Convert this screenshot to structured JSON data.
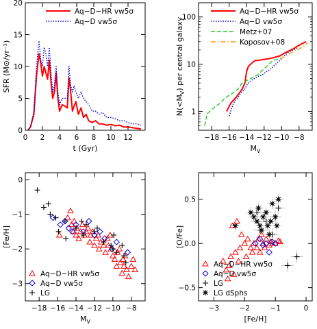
{
  "chart_data": [
    {
      "type": "line",
      "xlabel": "t (Gyr)",
      "ylabel": "SFR (M⊙/yr⁻¹)",
      "xlim": [
        0,
        14
      ],
      "ylim": [
        0,
        20
      ],
      "xticks": [
        "0",
        "2",
        "4",
        "6",
        "8",
        "10",
        "12"
      ],
      "yticks": [
        "0",
        "5",
        "10",
        "15",
        "20"
      ],
      "legend_position": "top-right",
      "series": [
        {
          "name": "Aq−D−HR vw5σ",
          "color": "#ff0000",
          "style": "solid",
          "x": [
            0.3,
            0.6,
            1.0,
            1.3,
            1.6,
            1.8,
            2.0,
            2.2,
            2.4,
            2.6,
            2.8,
            3.0,
            3.2,
            3.4,
            3.6,
            3.8,
            4.0,
            4.3,
            4.6,
            4.9,
            5.1,
            5.3,
            5.5,
            5.7,
            5.9,
            6.2,
            6.5,
            6.8,
            7.1,
            7.4,
            7.8,
            8.2,
            8.6,
            9.0,
            9.5,
            10.0,
            10.5,
            11.0,
            11.5,
            12.0,
            12.5,
            13.0,
            13.5
          ],
          "y": [
            0,
            0.5,
            2.5,
            8.5,
            12,
            10.5,
            8.5,
            10,
            9,
            8,
            11,
            7.5,
            5,
            6,
            9,
            5,
            3,
            4,
            3.8,
            3.5,
            8.2,
            6,
            3,
            3.8,
            4.5,
            2.5,
            3.5,
            2,
            2.5,
            1.5,
            1.2,
            1.5,
            1,
            1,
            0.8,
            0.9,
            0.7,
            0.8,
            0.5,
            0.5,
            0.4,
            0.3,
            0.2
          ]
        },
        {
          "name": "Aq−D vw5σ",
          "color": "#0000dd",
          "style": "dotted",
          "x": [
            0.3,
            0.6,
            1.0,
            1.3,
            1.6,
            1.8,
            2.0,
            2.2,
            2.4,
            2.6,
            2.8,
            3.0,
            3.2,
            3.4,
            3.6,
            3.8,
            4.0,
            4.3,
            4.6,
            4.9,
            5.1,
            5.3,
            5.5,
            5.7,
            5.9,
            6.2,
            6.5,
            6.8,
            7.1,
            7.4,
            7.8,
            8.2,
            8.6,
            9.0,
            9.5,
            10.0,
            10.5,
            11.0,
            11.5,
            12.0,
            12.5,
            13.0,
            13.5
          ],
          "y": [
            0,
            0.5,
            3,
            10,
            14,
            11,
            10,
            13,
            12,
            10,
            13,
            9,
            6,
            7,
            10,
            6,
            4,
            5,
            5,
            5,
            10,
            7,
            6,
            7,
            6,
            5,
            6,
            5,
            4.5,
            4,
            3,
            3,
            2.5,
            2.8,
            2,
            2,
            1.8,
            1.5,
            1.5,
            1.2,
            1,
            1,
            0.8
          ]
        }
      ]
    },
    {
      "type": "line",
      "xlabel": "M_V",
      "ylabel": "N(<M_V) per central galaxy",
      "xlim": [
        -19.5,
        -6.5
      ],
      "ylim": [
        0.4,
        200
      ],
      "yscale": "log",
      "xticks": [
        "−18",
        "−16",
        "−14",
        "−12",
        "−10",
        "−8"
      ],
      "yticks": [
        "1",
        "10",
        "100"
      ],
      "legend_position": "top-right",
      "series": [
        {
          "name": "Aq−D−HR vw5σ",
          "color": "#ff0000",
          "style": "solid",
          "x": [
            -16.3,
            -15.8,
            -15.2,
            -14.8,
            -14.5,
            -14.2,
            -14.0,
            -13.8,
            -13.3,
            -13.0,
            -12.7,
            -12.2,
            -11.5,
            -10.8,
            -10.2,
            -9.7,
            -9.2,
            -8.7,
            -8.2,
            -7.7,
            -7.2
          ],
          "y": [
            1,
            1.5,
            2,
            2.5,
            3,
            4,
            7,
            9,
            11,
            12,
            12,
            12.5,
            13,
            14,
            15,
            17,
            19,
            21,
            24,
            27,
            30
          ]
        },
        {
          "name": "Aq−D vw5σ",
          "color": "#0000dd",
          "style": "dotted",
          "x": [
            -16.0,
            -15.5,
            -15.0,
            -14.6,
            -14.2,
            -13.9,
            -13.5,
            -13.1,
            -12.7,
            -12.2,
            -11.7,
            -11.2,
            -10.7,
            -10.2,
            -9.7,
            -9.2,
            -8.7,
            -8.2
          ],
          "y": [
            0.8,
            1.5,
            2,
            2.5,
            3,
            3.8,
            4.5,
            5,
            5.5,
            6,
            7,
            8,
            10,
            12,
            15,
            18,
            20,
            22
          ]
        },
        {
          "name": "Metz+07",
          "color": "#22cc22",
          "style": "dashed",
          "x": [
            -18.8,
            -18.5,
            -18.0,
            -17.5,
            -17.0,
            -16.5,
            -16.0,
            -15.5,
            -15.0,
            -14.5,
            -14.0,
            -13.5,
            -12.7,
            -12.0,
            -11.0,
            -10.2
          ],
          "y": [
            0.5,
            0.9,
            1.1,
            1.3,
            1.5,
            1.9,
            2.2,
            2.5,
            3,
            4,
            4.5,
            5,
            6,
            8,
            12,
            13
          ]
        },
        {
          "name": "Koposov+08",
          "color": "#ff9900",
          "style": "dashdot",
          "x": [
            -10.2,
            -9.5,
            -9.0,
            -8.5,
            -8.0,
            -7.5,
            -7.0
          ],
          "y": [
            13,
            15,
            17,
            19,
            21,
            24,
            28
          ]
        }
      ]
    },
    {
      "type": "scatter",
      "xlabel": "M_V",
      "ylabel": "[Fe/H]",
      "xlim": [
        -19.5,
        -6.5
      ],
      "ylim": [
        -3.5,
        0.2
      ],
      "xticks": [
        "−18",
        "−16",
        "−14",
        "−12",
        "−10",
        "−8"
      ],
      "yticks": [
        "−3",
        "−2",
        "−1",
        "0"
      ],
      "legend_position": "bottom-left",
      "series": [
        {
          "name": "Aq−D−HR vw5σ",
          "color": "#ff0000",
          "marker": "triangle",
          "x": [
            -15.8,
            -14.9,
            -14.6,
            -14.5,
            -14.3,
            -14.2,
            -14.0,
            -13.9,
            -13.7,
            -13.5,
            -13.3,
            -13.1,
            -12.9,
            -12.7,
            -12.5,
            -12.4,
            -12.2,
            -12.0,
            -11.8,
            -11.6,
            -11.5,
            -11.3,
            -11.0,
            -10.8,
            -10.6,
            -10.5,
            -10.3,
            -10.2,
            -10.0,
            -9.8,
            -9.6,
            -9.5,
            -9.3,
            -9.2,
            -9.0,
            -8.9,
            -8.8,
            -8.7,
            -8.5,
            -8.3,
            -8.0,
            -7.8,
            -7.6
          ],
          "y": [
            -1.6,
            -1.1,
            -0.9,
            -1.3,
            -1.5,
            -1.2,
            -1.6,
            -1.4,
            -1.7,
            -1.5,
            -1.3,
            -1.6,
            -1.5,
            -1.4,
            -1.8,
            -1.6,
            -1.5,
            -1.9,
            -1.7,
            -1.6,
            -2.0,
            -1.8,
            -1.9,
            -2.1,
            -1.7,
            -1.9,
            -1.6,
            -2.0,
            -2.2,
            -2.3,
            -2.5,
            -2.1,
            -2.0,
            -2.4,
            -2.7,
            -2.3,
            -2.5,
            -2.2,
            -2.6,
            -2.8,
            -2.5,
            -2.3,
            -2.6
          ]
        },
        {
          "name": "Aq−D vw5σ",
          "color": "#0000dd",
          "marker": "diamond",
          "x": [
            -16.5,
            -15.7,
            -15.2,
            -14.8,
            -14.4,
            -14.0,
            -13.2,
            -12.6,
            -12.0,
            -11.4,
            -10.9,
            -10.1,
            -9.6,
            -8.4
          ],
          "y": [
            -1.1,
            -1.3,
            -1.2,
            -1.4,
            -1.5,
            -1.3,
            -1.5,
            -1.2,
            -1.6,
            -1.5,
            -1.7,
            -2.0,
            -1.8,
            -2.1
          ]
        },
        {
          "name": "LG",
          "color": "#000000",
          "marker": "plus",
          "x": [
            -18.2,
            -17.5,
            -17.0,
            -16.8,
            -16.2,
            -15.9,
            -15.2,
            -15.1,
            -14.0,
            -13.4,
            -13.2,
            -12.9,
            -12.0,
            -11.7,
            -11.0,
            -10.2,
            -10.0,
            -9.9,
            -9.6,
            -9.0,
            -8.8,
            -8.6
          ],
          "y": [
            -0.3,
            -0.8,
            -0.7,
            -1.0,
            -1.1,
            -1.5,
            -1.2,
            -1.7,
            -1.4,
            -1.2,
            -1.6,
            -1.3,
            -1.5,
            -1.4,
            -1.8,
            -1.9,
            -2.0,
            -1.6,
            -2.1,
            -1.9,
            -2.2,
            -2.4
          ]
        }
      ]
    },
    {
      "type": "scatter",
      "xlabel": "[Fe/H]",
      "ylabel": "[O/Fe]",
      "xlim": [
        -3.5,
        0.2
      ],
      "ylim": [
        -0.65,
        0.8
      ],
      "xticks": [
        "−3",
        "−2",
        "−1",
        "0"
      ],
      "yticks": [
        "−0.5",
        "0.0",
        "0.5"
      ],
      "legend_position": "bottom-left",
      "series": [
        {
          "name": "Aq−D−HR vw5σ",
          "color": "#ff0000",
          "marker": "triangle",
          "x": [
            -2.7,
            -2.6,
            -2.55,
            -2.5,
            -2.45,
            -2.4,
            -2.35,
            -2.3,
            -2.25,
            -2.2,
            -2.15,
            -2.1,
            -2.0,
            -1.95,
            -1.9,
            -1.8,
            -1.75,
            -1.7,
            -1.6,
            -1.55,
            -1.5,
            -1.45,
            -1.4,
            -1.35,
            -1.3,
            -1.2,
            -1.15,
            -1.1,
            -1.0,
            -0.9,
            -0.85
          ],
          "y": [
            -0.2,
            -0.3,
            -0.4,
            -0.25,
            -0.15,
            0.2,
            -0.35,
            -0.1,
            0.25,
            -0.2,
            -0.05,
            0.1,
            0.0,
            -0.15,
            0.05,
            -0.05,
            -0.1,
            0.0,
            -0.05,
            0.05,
            -0.1,
            0.1,
            0.0,
            -0.05,
            0.05,
            -0.02,
            0.02,
            0.0,
            0.0,
            0.03,
            0.02
          ]
        },
        {
          "name": "Aq−D vw5σ",
          "color": "#0000dd",
          "marker": "diamond",
          "x": [
            -1.65,
            -1.5,
            -1.4,
            -1.3,
            -1.2,
            -1.1,
            -1.0
          ],
          "y": [
            0.0,
            0.05,
            -0.02,
            0.0,
            -0.1,
            0.02,
            0.0
          ]
        },
        {
          "name": "LG",
          "color": "#000000",
          "marker": "plus",
          "x": [
            -1.6,
            -1.3,
            -1.1,
            -0.9,
            -0.6,
            -0.3,
            -1.5,
            -1.0
          ],
          "y": [
            0.35,
            0.25,
            0.1,
            0.4,
            -0.25,
            -0.15,
            0.15,
            0.3
          ]
        },
        {
          "name": "LG dSphs",
          "color": "#000000",
          "marker": "star",
          "x": [
            -2.3,
            -1.8,
            -1.7,
            -1.6,
            -1.55,
            -1.5,
            -1.45,
            -1.4,
            -1.3,
            -1.25,
            -1.2,
            -1.15,
            -1.1,
            -1.0,
            -0.95,
            -0.9
          ],
          "y": [
            0.2,
            0.35,
            0.3,
            0.25,
            0.4,
            0.2,
            0.15,
            0.3,
            0.35,
            0.2,
            0.1,
            0.25,
            0.45,
            0.3,
            0.2,
            0.5
          ]
        }
      ]
    }
  ]
}
